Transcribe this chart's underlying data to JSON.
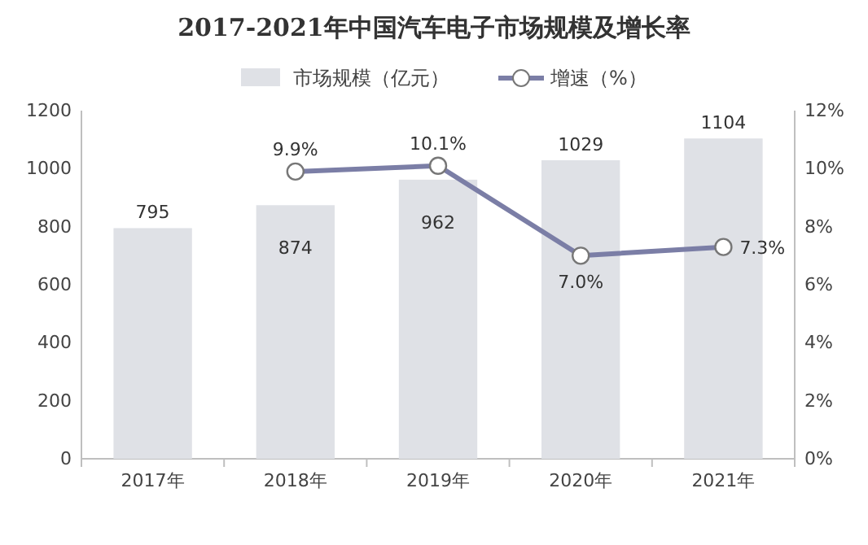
{
  "chart_data": {
    "type": "bar",
    "title": "2017-2021年中国汽车电子市场规模及增长率",
    "categories": [
      "2017年",
      "2018年",
      "2019年",
      "2020年",
      "2021年"
    ],
    "series": [
      {
        "name": "市场规模（亿元）",
        "color": "#dfe1e6",
        "values": [
          795,
          874,
          962,
          1029,
          1104
        ],
        "value_labels": [
          "795",
          "874",
          "962",
          "1029",
          "1104"
        ]
      },
      {
        "type": "line",
        "axis": "y2",
        "name": "增速（%）",
        "color": "#7b7ea6",
        "marker": "circle",
        "values": [
          null,
          9.9,
          10.1,
          7.0,
          7.3
        ],
        "value_labels": [
          null,
          "9.9%",
          "10.1%",
          "7.0%",
          "7.3%"
        ]
      }
    ],
    "ylim": [
      0,
      1200
    ],
    "yticks": [
      0,
      200,
      400,
      600,
      800,
      1000,
      1200
    ],
    "y2lim": [
      0,
      12
    ],
    "y2ticks": [
      {
        "value": 0,
        "label": "0%"
      },
      {
        "value": 2,
        "label": "2%"
      },
      {
        "value": 4,
        "label": "4%"
      },
      {
        "value": 6,
        "label": "6%"
      },
      {
        "value": 8,
        "label": "8%"
      },
      {
        "value": 10,
        "label": "10%"
      },
      {
        "value": 12,
        "label": "12%"
      }
    ],
    "legend": "top"
  }
}
